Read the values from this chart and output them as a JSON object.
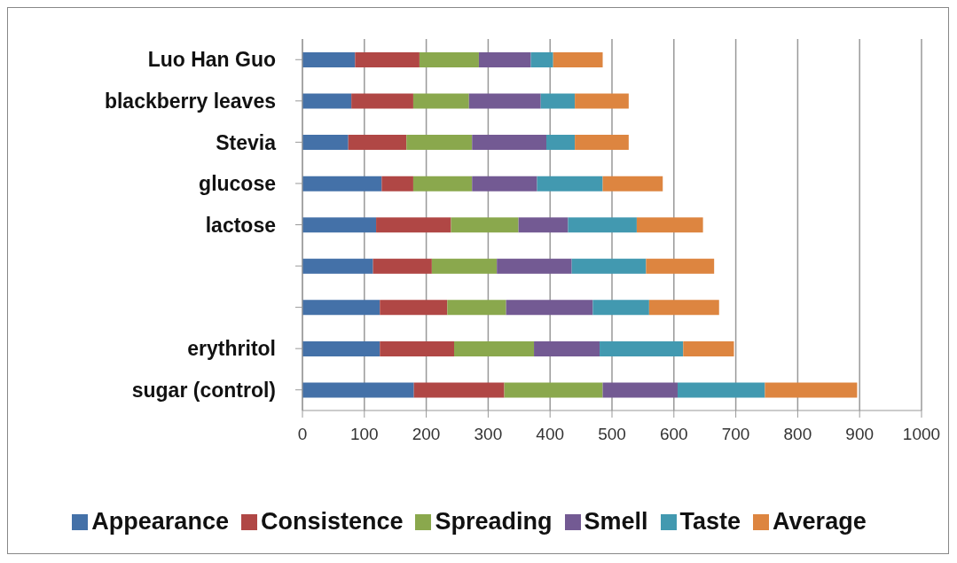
{
  "chart_data": {
    "type": "bar",
    "orientation": "horizontal",
    "stacked": true,
    "categories": [
      "Luo Han Guo",
      "blackberry leaves",
      "Stevia",
      "glucose",
      "lactose",
      null,
      null,
      "erythritol",
      "sugar (control)"
    ],
    "series": [
      {
        "name": "Appearance",
        "color": "#4471a8",
        "values": [
          85,
          79,
          74,
          128,
          119,
          114,
          125,
          125,
          180
        ]
      },
      {
        "name": "Consistence",
        "color": "#b04745",
        "values": [
          104,
          100,
          94,
          51,
          121,
          95,
          109,
          120,
          146
        ]
      },
      {
        "name": "Spreading",
        "color": "#8aa84d",
        "values": [
          96,
          90,
          106,
          95,
          109,
          105,
          95,
          129,
          159
        ]
      },
      {
        "name": "Smell",
        "color": "#735a93",
        "values": [
          84,
          116,
          120,
          105,
          80,
          121,
          140,
          106,
          121
        ]
      },
      {
        "name": "Taste",
        "color": "#4299b0",
        "values": [
          36,
          55,
          46,
          106,
          111,
          120,
          91,
          135,
          141
        ]
      },
      {
        "name": "Average",
        "color": "#dd8540",
        "values": [
          80,
          87,
          87,
          97,
          107,
          110,
          113,
          82,
          149
        ]
      }
    ],
    "xlim": [
      0,
      1000
    ],
    "xticks": [
      0,
      100,
      200,
      300,
      400,
      500,
      600,
      700,
      800,
      900,
      1000
    ],
    "grid": "x",
    "legend": "bottom"
  }
}
